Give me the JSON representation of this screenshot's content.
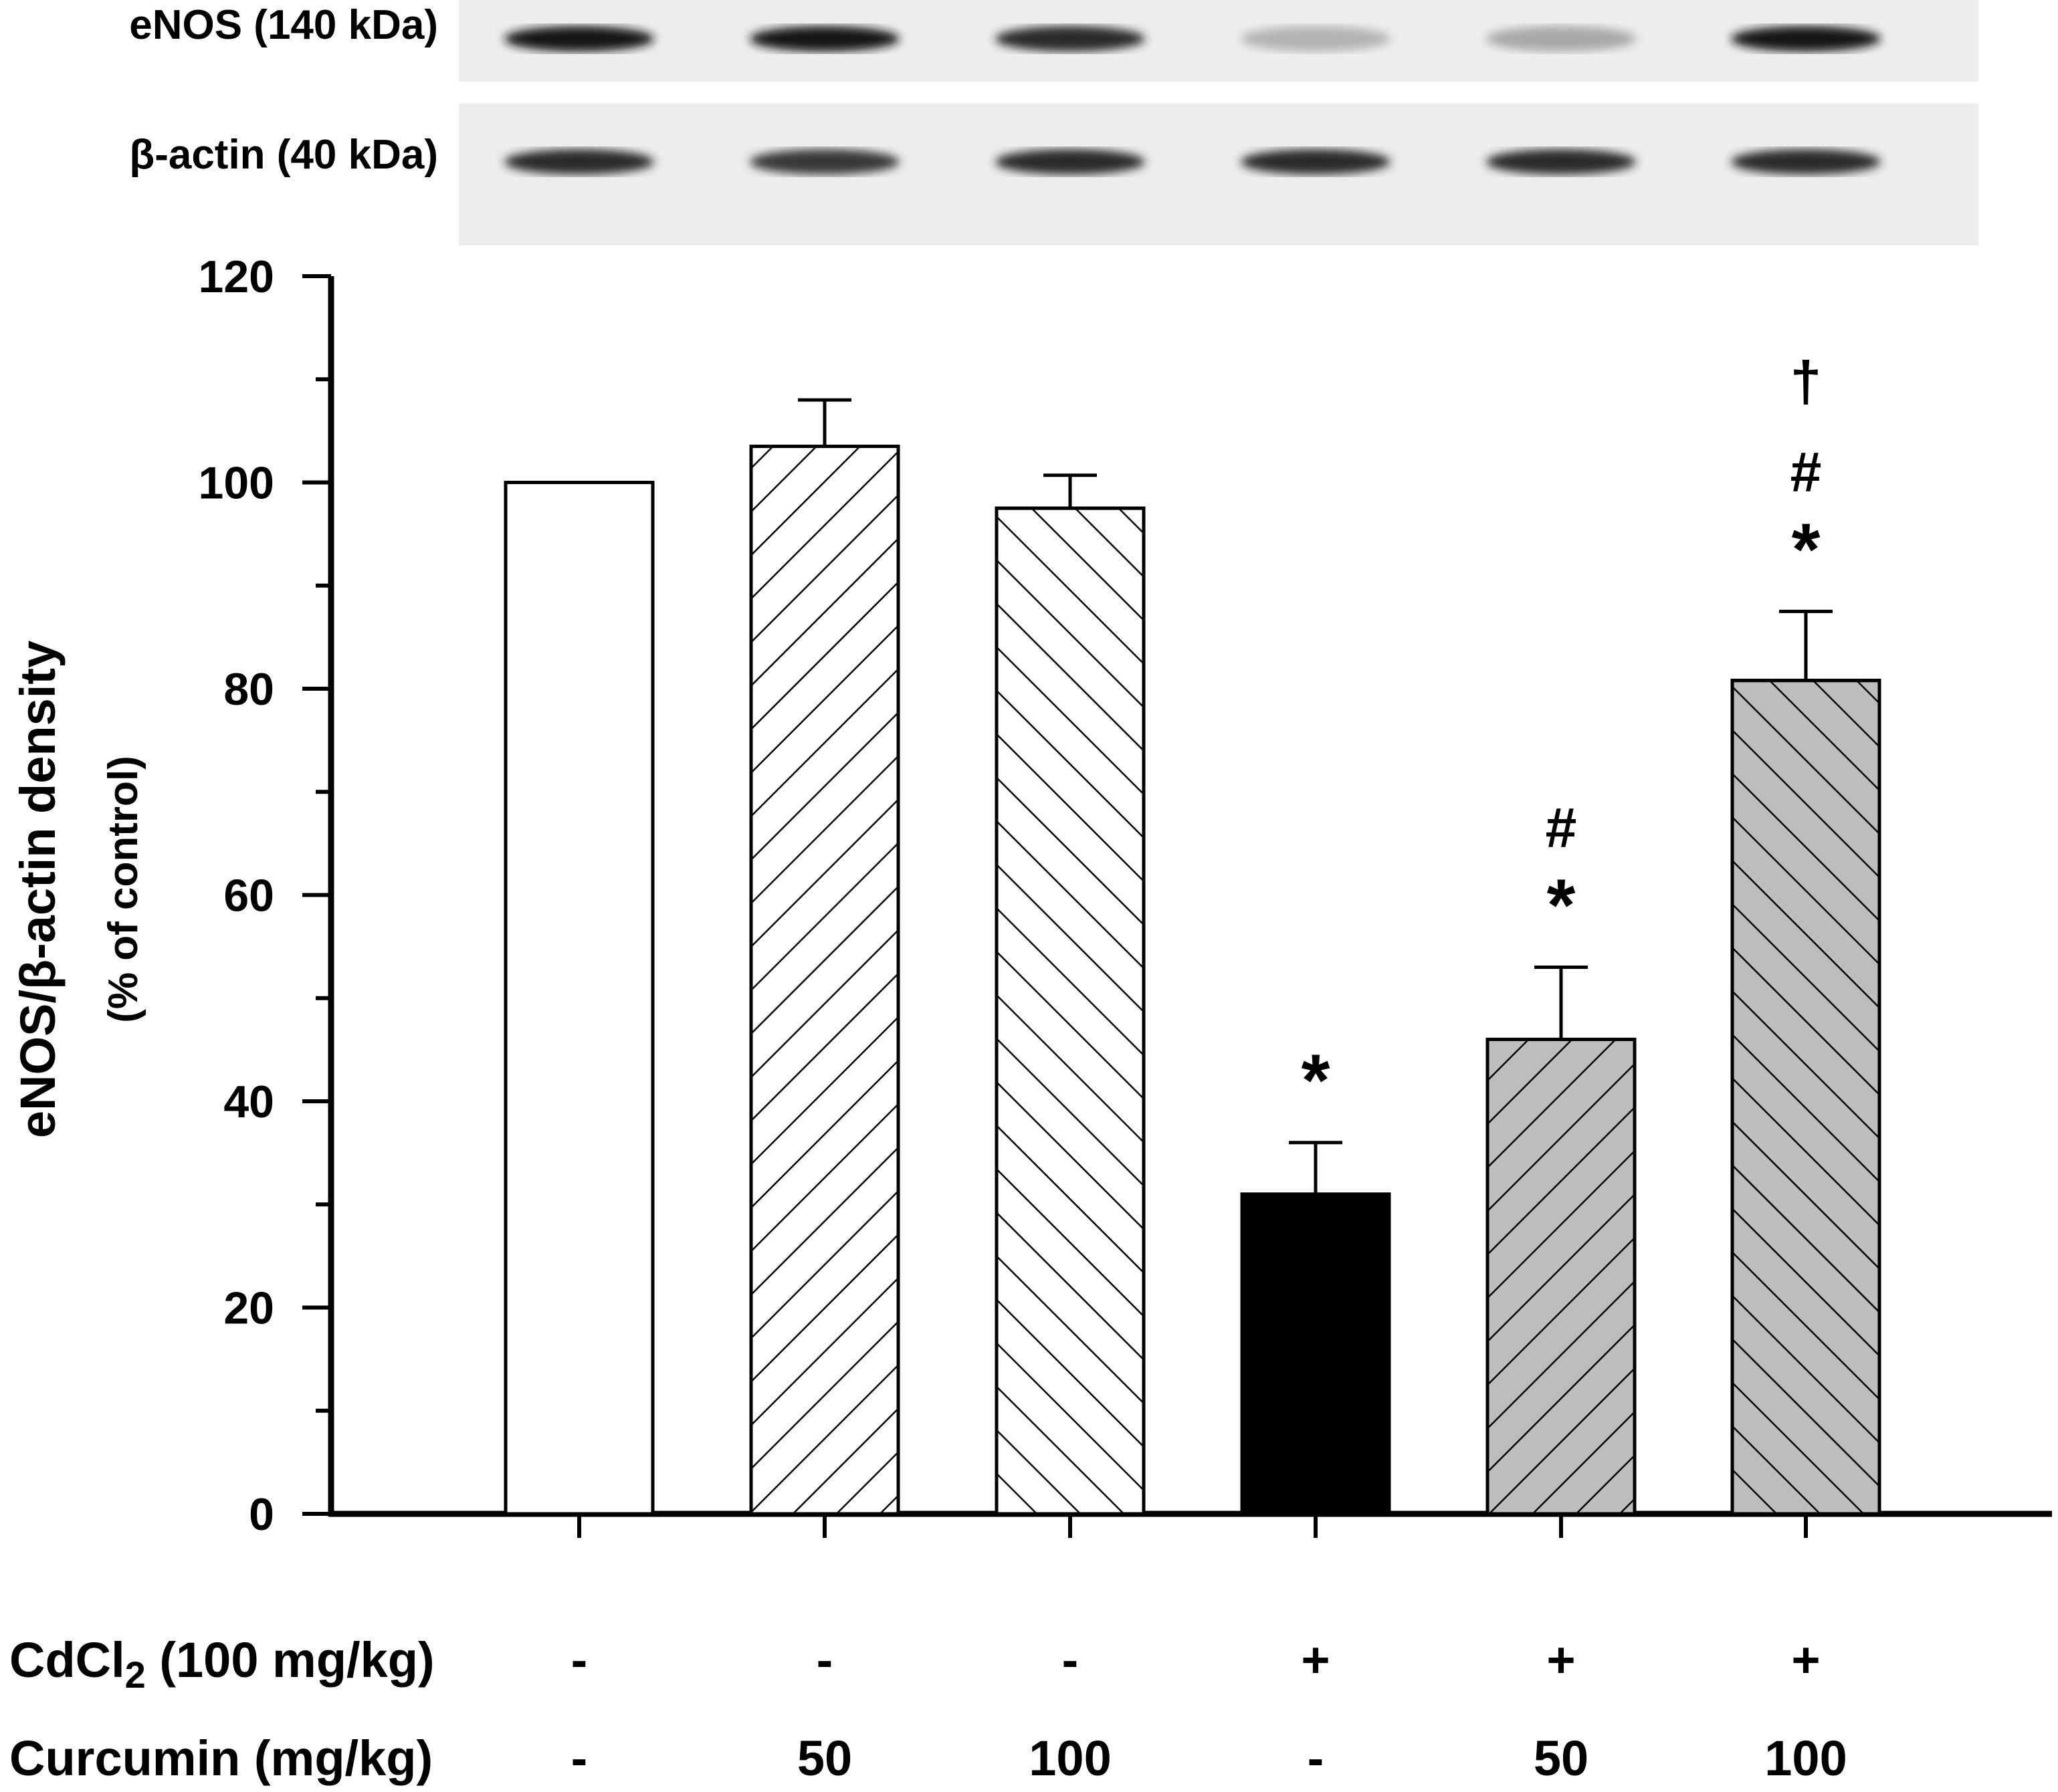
{
  "blot": {
    "bands": [
      {
        "label": "eNOS (140 kDa)",
        "intensities": [
          0.95,
          0.95,
          0.85,
          0.25,
          0.3,
          0.95
        ]
      },
      {
        "label": "β-actin (40 kDa)",
        "intensities": [
          0.85,
          0.8,
          0.85,
          0.85,
          0.85,
          0.85
        ]
      }
    ]
  },
  "chart_data": {
    "type": "bar",
    "title": "",
    "xlabel": "",
    "ylabel": "eNOS/β-actin density",
    "ylabel_sub": "(% of control)",
    "ylim": [
      0,
      120
    ],
    "yticks": [
      "0",
      "20",
      "40",
      "60",
      "80",
      "100",
      "120"
    ],
    "categories": [
      "Control",
      "Curcumin 50",
      "Curcumin 100",
      "CdCl2",
      "CdCl2 + Curcumin 50",
      "CdCl2 + Curcumin 100"
    ],
    "values": [
      100,
      103.5,
      97.5,
      31,
      46,
      80.8
    ],
    "errors": [
      0,
      4.5,
      3.2,
      5,
      7,
      6.7
    ],
    "fills": [
      "#ffffff",
      "#ffffff",
      "#ffffff",
      "#000000",
      "#bdbdbd",
      "#bdbdbd"
    ],
    "hatch": [
      "none",
      "fwd",
      "back",
      "none",
      "fwd",
      "back"
    ],
    "significance": [
      [],
      [],
      [],
      [
        "*"
      ],
      [
        "*",
        "#"
      ],
      [
        "*",
        "#",
        "†"
      ]
    ],
    "treatment_rows": [
      {
        "label": "CdCl",
        "label_sub": "2",
        "label_tail": " (100 mg/kg)",
        "values": [
          "-",
          "-",
          "-",
          "+",
          "+",
          "+"
        ]
      },
      {
        "label": "Curcumin (mg/kg)",
        "label_sub": "",
        "label_tail": "",
        "values": [
          "-",
          "50",
          "100",
          "-",
          "50",
          "100"
        ]
      }
    ]
  }
}
